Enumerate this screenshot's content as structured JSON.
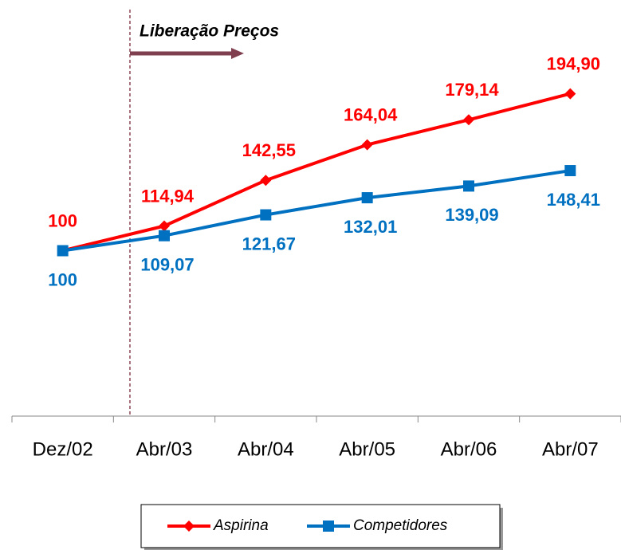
{
  "chart_data": {
    "type": "line",
    "annotation": "Liberação Preços",
    "categories": [
      "Dez/02",
      "Abr/03",
      "Abr/04",
      "Abr/05",
      "Abr/06",
      "Abr/07"
    ],
    "series": [
      {
        "name": "Aspirina",
        "color": "#ff0000",
        "marker": "diamond",
        "values": [
          100,
          114.94,
          142.55,
          164.04,
          179.14,
          194.9
        ],
        "value_labels": [
          "100",
          "114,94",
          "142,55",
          "164,04",
          "179,14",
          "194,90"
        ]
      },
      {
        "name": "Competidores",
        "color": "#0070c0",
        "marker": "square",
        "values": [
          100,
          109.07,
          121.67,
          132.01,
          139.09,
          148.41
        ],
        "value_labels": [
          "100",
          "109,07",
          "121,67",
          "132,01",
          "139,09",
          "148,41"
        ]
      }
    ],
    "ylim": [
      0,
      200
    ],
    "legend": "bottom"
  }
}
